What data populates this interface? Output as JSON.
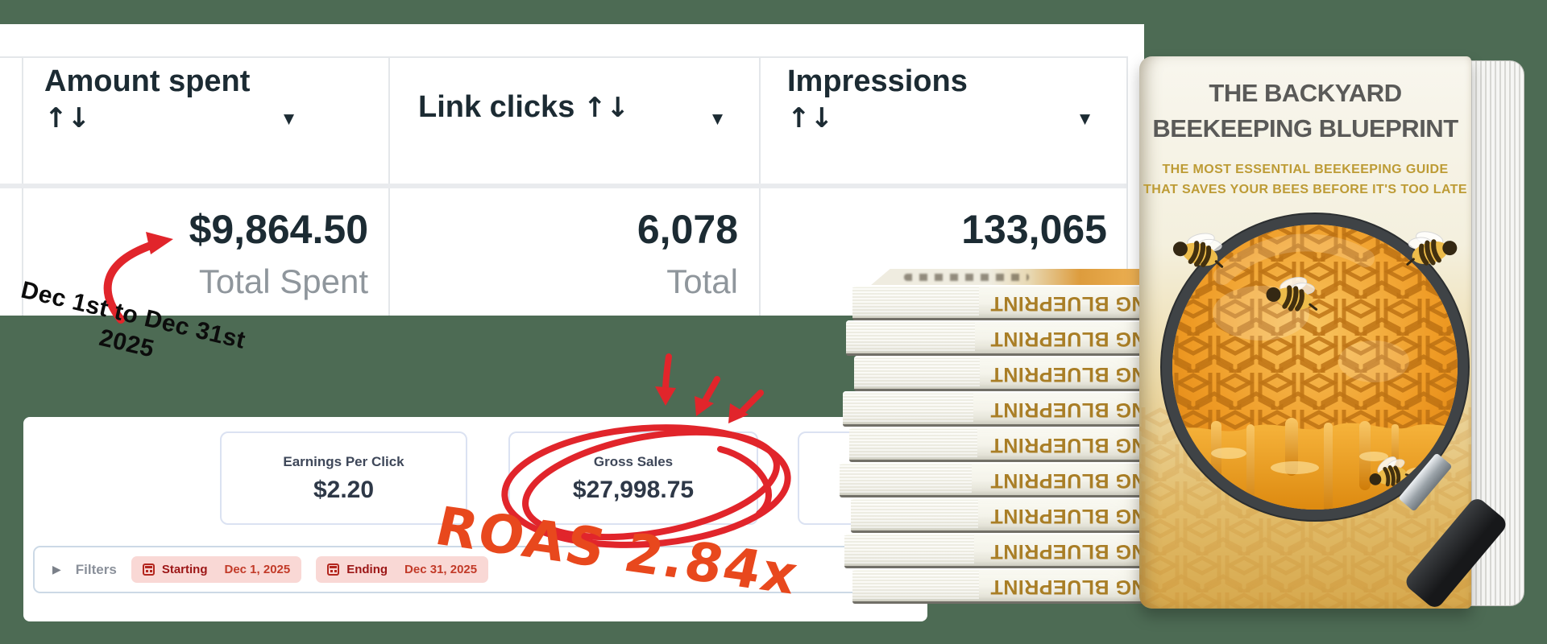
{
  "colors": {
    "background": "#4d6b54",
    "annotation_red": "#e1252b",
    "annotation_orange": "#e8481d",
    "pill_background": "#f9d8d5",
    "spine_gold": "#a97e26"
  },
  "ads_table": {
    "columns": [
      {
        "label": "Amount spent",
        "sort": "↑↓",
        "caret": "▼"
      },
      {
        "label": "Link clicks",
        "sort": "↑↓",
        "caret": "▼"
      },
      {
        "label": "Impressions",
        "sort": "↑↓",
        "caret": "▼"
      }
    ],
    "totals_row": {
      "amount_spent": "$9,864.50",
      "amount_spent_label": "Total Spent",
      "link_clicks": "6,078",
      "link_clicks_label": "Total",
      "impressions": "133,065"
    }
  },
  "annotations": {
    "date_note_line1": "Dec 1st to Dec 31st",
    "date_note_line2": "2025",
    "roas_note": "ROAS 2.84x"
  },
  "stats_dashboard": {
    "cards": [
      {
        "label": "Earnings Per Click",
        "value": "$2.20"
      },
      {
        "label": "Gross Sales",
        "value": "$27,998.75"
      }
    ],
    "filters": {
      "toggle_caret": "▶",
      "label": "Filters",
      "starting": {
        "label": "Starting",
        "date": "Dec 1, 2025"
      },
      "ending": {
        "label": "Ending",
        "date": "Dec 31, 2025"
      }
    }
  },
  "book_cover": {
    "title_line1": "THE BACKYARD",
    "title_line2": "BEEKEEPING BLUEPRINT",
    "subtitle_line1": "THE MOST ESSENTIAL BEEKEEPING GUIDE",
    "subtitle_line2": "THAT SAVES YOUR BEES BEFORE IT'S TOO LATE"
  },
  "book_stack": {
    "spine_text": "NG BLUEPRINT",
    "book_count": 9
  }
}
